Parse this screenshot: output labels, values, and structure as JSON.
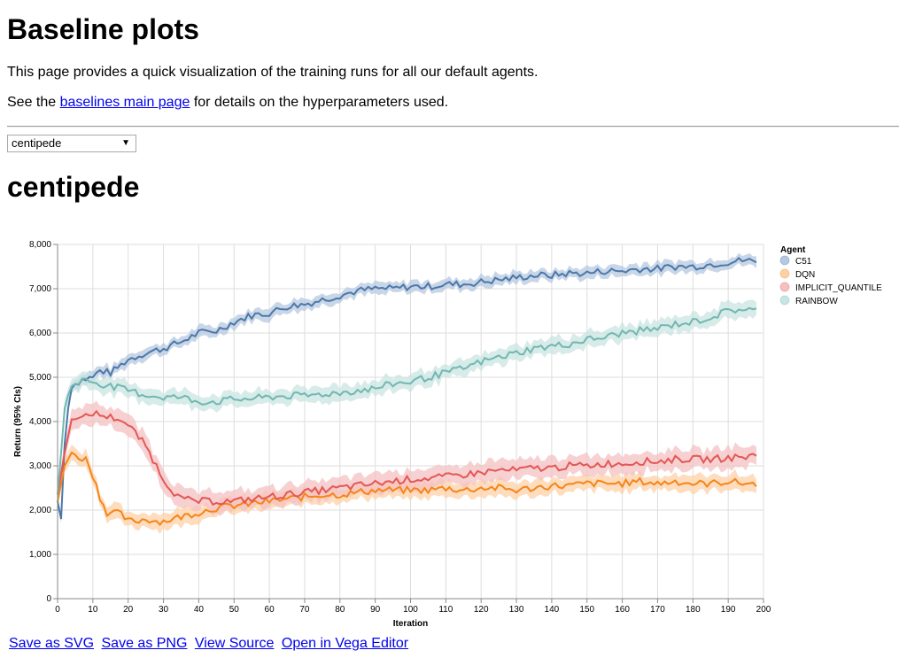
{
  "page": {
    "title": "Baseline plots",
    "intro": "This page provides a quick visualization of the training runs for all our default agents.",
    "see_prefix": "See the ",
    "see_link": "baselines main page",
    "see_suffix": " for details on the hyperparameters used.",
    "game_select": {
      "selected": "centipede"
    },
    "game_title": "centipede",
    "actions": [
      "Save as SVG",
      "Save as PNG",
      "View Source",
      "Open in Vega Editor"
    ]
  },
  "chart_data": {
    "type": "line",
    "title": "centipede",
    "xlabel": "Iteration",
    "ylabel": "Return (95% CIs)",
    "xlim": [
      0,
      200
    ],
    "ylim": [
      0,
      8000
    ],
    "x_ticks": [
      0,
      10,
      20,
      30,
      40,
      50,
      60,
      70,
      80,
      90,
      100,
      110,
      120,
      130,
      140,
      150,
      160,
      170,
      180,
      190,
      200
    ],
    "y_ticks": [
      0,
      1000,
      2000,
      3000,
      4000,
      5000,
      6000,
      7000,
      8000
    ],
    "y_tick_labels": [
      "0",
      "1,000",
      "2,000",
      "3,000",
      "4,000",
      "5,000",
      "6,000",
      "7,000",
      "8,000"
    ],
    "grid": true,
    "legend": {
      "title": "Agent",
      "position": "top-right"
    },
    "series": [
      {
        "name": "C51",
        "color": "#4c78a8",
        "band_color": "#b5c8e0",
        "ci_halfwidth": 130,
        "x": [
          0,
          1,
          2,
          3,
          4,
          5,
          7,
          10,
          12,
          15,
          20,
          25,
          30,
          35,
          40,
          45,
          50,
          55,
          60,
          65,
          70,
          75,
          80,
          85,
          90,
          95,
          100,
          105,
          110,
          115,
          120,
          125,
          130,
          135,
          140,
          145,
          150,
          155,
          160,
          165,
          170,
          175,
          180,
          185,
          190,
          195,
          198
        ],
        "values": [
          2200,
          1800,
          3500,
          4300,
          4750,
          4850,
          4950,
          5000,
          5150,
          5100,
          5400,
          5550,
          5650,
          5800,
          6000,
          6050,
          6250,
          6400,
          6450,
          6600,
          6650,
          6750,
          6850,
          6950,
          7000,
          7000,
          7050,
          7050,
          7100,
          7100,
          7150,
          7200,
          7250,
          7300,
          7300,
          7350,
          7350,
          7400,
          7400,
          7450,
          7450,
          7500,
          7500,
          7550,
          7600,
          7650,
          7600
        ]
      },
      {
        "name": "DQN",
        "color": "#f58518",
        "band_color": "#fdd0a8",
        "ci_halfwidth": 180,
        "x": [
          0,
          2,
          4,
          6,
          8,
          10,
          12,
          14,
          16,
          18,
          20,
          22,
          25,
          28,
          30,
          35,
          40,
          45,
          50,
          55,
          60,
          65,
          70,
          75,
          80,
          85,
          90,
          95,
          100,
          105,
          110,
          115,
          120,
          125,
          130,
          135,
          140,
          145,
          150,
          155,
          160,
          165,
          170,
          175,
          180,
          185,
          190,
          195,
          198
        ],
        "values": [
          2200,
          3000,
          3300,
          3200,
          3150,
          2800,
          2300,
          1950,
          1950,
          1900,
          1750,
          1750,
          1800,
          1750,
          1750,
          1850,
          1950,
          2050,
          2100,
          2150,
          2200,
          2250,
          2300,
          2350,
          2350,
          2400,
          2450,
          2450,
          2450,
          2450,
          2500,
          2450,
          2500,
          2500,
          2450,
          2500,
          2550,
          2550,
          2600,
          2600,
          2600,
          2650,
          2600,
          2650,
          2600,
          2600,
          2650,
          2600,
          2600
        ]
      },
      {
        "name": "IMPLICIT_QUANTILE",
        "color": "#e45756",
        "band_color": "#f4c1c1",
        "ci_halfwidth": 230,
        "x": [
          0,
          2,
          4,
          6,
          8,
          10,
          12,
          15,
          18,
          20,
          22,
          25,
          28,
          30,
          33,
          35,
          40,
          45,
          50,
          55,
          60,
          65,
          70,
          75,
          80,
          85,
          90,
          95,
          100,
          105,
          110,
          115,
          120,
          125,
          130,
          135,
          140,
          145,
          150,
          155,
          160,
          165,
          170,
          175,
          180,
          185,
          190,
          195,
          198
        ],
        "values": [
          2350,
          3300,
          4050,
          4050,
          4100,
          4200,
          4150,
          4100,
          4050,
          3900,
          3750,
          3450,
          3000,
          2700,
          2400,
          2250,
          2200,
          2200,
          2200,
          2250,
          2300,
          2350,
          2400,
          2450,
          2500,
          2550,
          2600,
          2650,
          2700,
          2720,
          2750,
          2800,
          2850,
          2900,
          2900,
          2950,
          2950,
          3000,
          3000,
          3050,
          3050,
          3100,
          3100,
          3150,
          3150,
          3150,
          3180,
          3200,
          3250
        ]
      },
      {
        "name": "RAINBOW",
        "color": "#72b7b2",
        "band_color": "#c9e4e2",
        "ci_halfwidth": 180,
        "x": [
          0,
          1,
          2,
          3,
          4,
          5,
          8,
          10,
          15,
          20,
          25,
          30,
          35,
          40,
          45,
          50,
          55,
          60,
          65,
          70,
          75,
          80,
          85,
          90,
          95,
          100,
          105,
          110,
          115,
          120,
          125,
          130,
          135,
          140,
          145,
          150,
          155,
          160,
          165,
          170,
          175,
          180,
          185,
          190,
          195,
          198
        ],
        "values": [
          2350,
          3300,
          4300,
          4600,
          4800,
          4850,
          4950,
          4900,
          4800,
          4700,
          4600,
          4550,
          4550,
          4450,
          4450,
          4500,
          4520,
          4550,
          4580,
          4580,
          4620,
          4650,
          4700,
          4750,
          4850,
          4900,
          5000,
          5100,
          5200,
          5350,
          5450,
          5550,
          5650,
          5700,
          5750,
          5850,
          5900,
          6000,
          6050,
          6100,
          6200,
          6250,
          6350,
          6500,
          6550,
          6500
        ]
      }
    ]
  }
}
